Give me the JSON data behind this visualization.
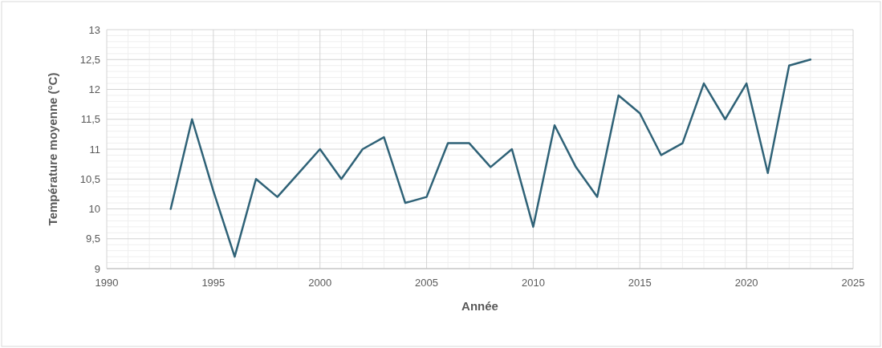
{
  "chart_data": {
    "type": "line",
    "xlabel": "Année",
    "ylabel": "Température moyenne (°C)",
    "x": [
      1993,
      1994,
      1995,
      1996,
      1997,
      1998,
      1999,
      2000,
      2001,
      2002,
      2003,
      2004,
      2005,
      2006,
      2007,
      2008,
      2009,
      2010,
      2011,
      2012,
      2013,
      2014,
      2015,
      2016,
      2017,
      2018,
      2019,
      2020,
      2021,
      2022,
      2023
    ],
    "series": [
      {
        "color": "#2f6277",
        "values": [
          10,
          11.5,
          10.3,
          9.2,
          10.5,
          10.2,
          10.6,
          11,
          10.5,
          11,
          11.2,
          10.1,
          10.2,
          11.1,
          11.1,
          10.7,
          11,
          9.7,
          11.4,
          10.7,
          10.2,
          11.9,
          11.6,
          10.9,
          11.1,
          12.1,
          11.5,
          12.1,
          10.6,
          12.4,
          12.5
        ]
      }
    ],
    "xlim": [
      1990,
      2025
    ],
    "xticks": [
      1990,
      1995,
      2000,
      2005,
      2010,
      2015,
      2020,
      2025
    ],
    "ylim": [
      9,
      13
    ],
    "yticks": [
      9,
      {
        "value": 9.5,
        "label": "9,5"
      },
      10,
      {
        "value": 10.5,
        "label": "10,5"
      },
      11,
      {
        "value": 11.5,
        "label": "11,5"
      },
      12,
      {
        "value": 12.5,
        "label": "12,5"
      },
      13
    ],
    "grid": true,
    "marker": "none",
    "line_style": "solid"
  }
}
